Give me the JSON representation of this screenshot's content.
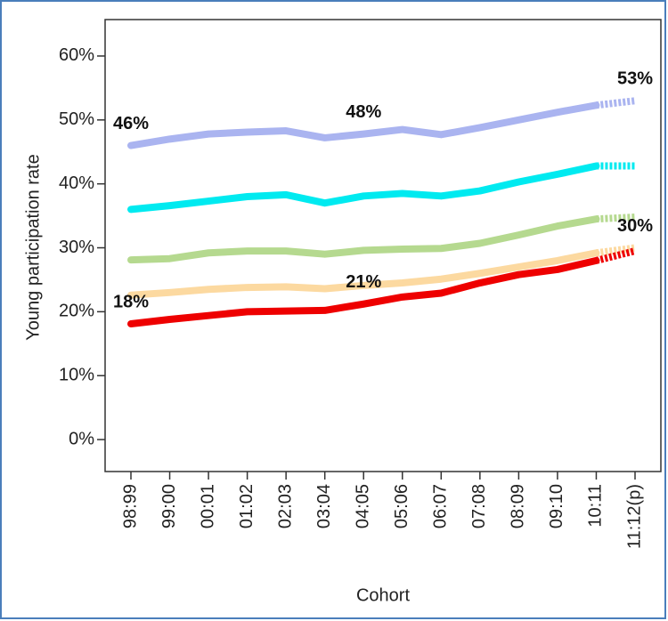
{
  "chart_data": {
    "type": "line",
    "xlabel": "Cohort",
    "ylabel": "Young participation rate",
    "categories": [
      "98:99",
      "99:00",
      "00:01",
      "01:02",
      "02:03",
      "03:04",
      "04:05",
      "05:06",
      "06:07",
      "07:08",
      "08:09",
      "09:10",
      "10:11",
      "11:12(p)"
    ],
    "ylim": [
      -5,
      65.7
    ],
    "yticks": [
      {
        "value": 0,
        "label": "0%"
      },
      {
        "value": 10,
        "label": "10%"
      },
      {
        "value": 20,
        "label": "20%"
      },
      {
        "value": 30,
        "label": "30%"
      },
      {
        "value": 40,
        "label": "40%"
      },
      {
        "value": 50,
        "label": "50%"
      },
      {
        "value": 60,
        "label": "60%"
      }
    ],
    "dashed_last_segment": true,
    "series": [
      {
        "color": "#aab4f0",
        "values": [
          46,
          47,
          47.8,
          48.1,
          48.3,
          47.2,
          47.8,
          48.5,
          47.7,
          48.8,
          50,
          51.2,
          52.3,
          53
        ],
        "value_labels": [
          "46%",
          null,
          null,
          null,
          null,
          null,
          "48%",
          null,
          null,
          null,
          null,
          null,
          null,
          "53%"
        ]
      },
      {
        "color": "#00eaf0",
        "values": [
          36,
          36.6,
          37.3,
          38,
          38.3,
          37,
          38.1,
          38.5,
          38.1,
          38.9,
          40.3,
          41.5,
          42.8,
          42.8
        ]
      },
      {
        "color": "#b5d98f",
        "values": [
          28.1,
          28.3,
          29.2,
          29.5,
          29.5,
          29,
          29.6,
          29.8,
          29.9,
          30.7,
          32,
          33.4,
          34.5,
          34.8
        ]
      },
      {
        "color": "#fcd9a0",
        "values": [
          22.6,
          23,
          23.5,
          23.8,
          23.9,
          23.6,
          24.1,
          24.5,
          25.1,
          26,
          27,
          28,
          29.2,
          30
        ],
        "value_labels": [
          null,
          null,
          null,
          null,
          null,
          null,
          null,
          null,
          null,
          null,
          null,
          null,
          null,
          "30%"
        ]
      },
      {
        "color": "#ee0000",
        "values": [
          18.1,
          18.8,
          19.4,
          20,
          20.1,
          20.2,
          21.2,
          22.3,
          22.9,
          24.5,
          25.8,
          26.6,
          28,
          29.5
        ],
        "value_labels": [
          "18%",
          null,
          null,
          null,
          null,
          null,
          "21%",
          null,
          null,
          null,
          null,
          null,
          null,
          null
        ]
      }
    ]
  }
}
